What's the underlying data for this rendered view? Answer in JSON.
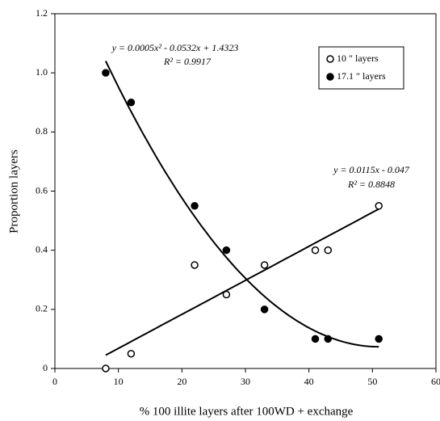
{
  "chart_data": {
    "type": "scatter",
    "x_label": "% 100 illite layers after 100WD + exchange",
    "y_label": "Proportion layers",
    "xlim": [
      0,
      60
    ],
    "xticks": [
      0,
      10,
      20,
      30,
      40,
      50,
      60
    ],
    "ylim": [
      0,
      1.2
    ],
    "yticks": [
      0,
      0.2,
      0.4,
      0.6,
      0.8,
      {
        "value": 1,
        "label": "1.0"
      },
      1.2
    ],
    "legend": "top-right",
    "series": [
      {
        "name": "10 ″ layers",
        "marker": "open",
        "color": "#000000",
        "trend_degree": 1,
        "x": [
          8,
          12,
          22,
          27,
          33,
          41,
          43,
          51
        ],
        "values": [
          0,
          0.05,
          0.35,
          0.25,
          0.35,
          0.4,
          0.4,
          0.55
        ]
      },
      {
        "name": "17.1 ″ layers",
        "marker": "filled",
        "color": "#000000",
        "trend_degree": 2,
        "x": [
          8,
          12,
          22,
          27,
          33,
          41,
          43,
          51
        ],
        "values": [
          1.0,
          0.9,
          0.55,
          0.4,
          0.2,
          0.1,
          0.1,
          0.1
        ]
      }
    ],
    "annotations": [
      "y = 0.0005x² - 0.0532x + 1.4323",
      "R² = 0.9917",
      "y = 0.0115x - 0.047",
      "R² = 0.8848"
    ]
  }
}
